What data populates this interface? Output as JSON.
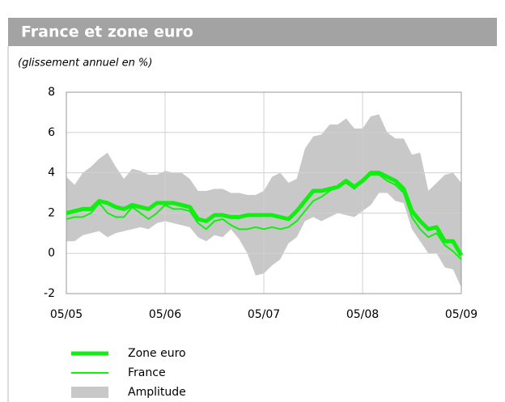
{
  "chart_data": {
    "type": "line",
    "title": "France et zone euro",
    "subtitle": "(glissement annuel en %)",
    "categories": [
      "05/05",
      null,
      null,
      null,
      null,
      null,
      null,
      null,
      null,
      null,
      null,
      null,
      "05/06",
      null,
      null,
      null,
      null,
      null,
      null,
      null,
      null,
      null,
      null,
      null,
      "05/07",
      null,
      null,
      null,
      null,
      null,
      null,
      null,
      null,
      null,
      null,
      null,
      "05/08",
      null,
      null,
      null,
      null,
      null,
      null,
      null,
      null,
      null,
      null,
      null,
      "05/09"
    ],
    "ylim": [
      -2,
      8
    ],
    "yticks": [
      -2,
      0,
      2,
      4,
      6,
      8
    ],
    "grid": true,
    "legend": "bottom-left",
    "series": [
      {
        "name": "Zone euro",
        "color": "#11ee11",
        "values": [
          2.0,
          2.1,
          2.2,
          2.2,
          2.6,
          2.5,
          2.3,
          2.2,
          2.4,
          2.3,
          2.2,
          2.5,
          2.5,
          2.5,
          2.4,
          2.3,
          1.7,
          1.6,
          1.9,
          1.9,
          1.8,
          1.8,
          1.9,
          1.9,
          1.9,
          1.9,
          1.8,
          1.7,
          2.1,
          2.6,
          3.1,
          3.1,
          3.2,
          3.3,
          3.6,
          3.3,
          3.6,
          4.0,
          4.0,
          3.8,
          3.6,
          3.2,
          2.1,
          1.6,
          1.2,
          1.3,
          0.6,
          0.6,
          -0.1
        ]
      },
      {
        "name": "France",
        "color": "#11ee11",
        "values": [
          1.7,
          1.8,
          1.8,
          2.0,
          2.5,
          2.0,
          1.8,
          1.8,
          2.3,
          2.0,
          1.7,
          2.0,
          2.4,
          2.2,
          2.2,
          2.1,
          1.5,
          1.2,
          1.6,
          1.7,
          1.4,
          1.2,
          1.2,
          1.3,
          1.2,
          1.3,
          1.2,
          1.3,
          1.6,
          2.1,
          2.6,
          2.8,
          3.1,
          3.3,
          3.5,
          3.2,
          3.6,
          3.9,
          3.9,
          3.6,
          3.4,
          3.0,
          1.8,
          1.2,
          0.8,
          1.0,
          0.4,
          0.1,
          -0.3
        ]
      },
      {
        "name": "Amplitude",
        "color": "#c8c8c8",
        "high": [
          3.8,
          3.4,
          4.0,
          4.3,
          4.7,
          5.0,
          4.3,
          3.7,
          4.2,
          4.1,
          3.9,
          3.9,
          4.1,
          4.0,
          4.0,
          3.7,
          3.1,
          3.1,
          3.2,
          3.2,
          3.0,
          3.0,
          2.9,
          2.9,
          3.1,
          3.8,
          4.0,
          3.5,
          3.7,
          5.2,
          5.8,
          5.9,
          6.4,
          6.4,
          6.7,
          6.2,
          6.2,
          6.8,
          6.9,
          6.0,
          5.7,
          5.7,
          4.9,
          5.0,
          3.1,
          3.5,
          3.9,
          4.0,
          3.5
        ],
        "low": [
          0.6,
          0.6,
          0.9,
          1.0,
          1.1,
          0.8,
          1.0,
          1.1,
          1.2,
          1.3,
          1.2,
          1.5,
          1.6,
          1.5,
          1.4,
          1.3,
          0.8,
          0.6,
          0.9,
          0.8,
          1.2,
          0.7,
          0.0,
          -1.1,
          -1.0,
          -0.6,
          -0.3,
          0.5,
          0.8,
          1.6,
          1.8,
          1.6,
          1.8,
          2.0,
          1.9,
          1.8,
          2.1,
          2.4,
          3.0,
          3.0,
          2.6,
          2.5,
          1.2,
          0.6,
          0.0,
          0.0,
          -0.7,
          -0.8,
          -1.7
        ]
      }
    ]
  }
}
